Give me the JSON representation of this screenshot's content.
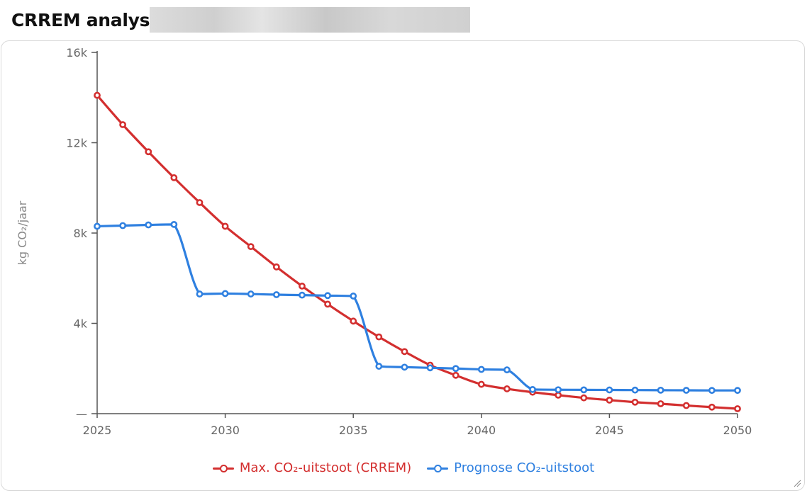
{
  "header": {
    "title": "CRREM analys"
  },
  "chart_data": {
    "type": "line",
    "ylabel": "kg CO₂/jaar",
    "xlabel": "",
    "xlim": [
      2025,
      2050
    ],
    "ylim": [
      0,
      16000
    ],
    "x_ticks": [
      2025,
      2030,
      2035,
      2040,
      2045,
      2050
    ],
    "x_tick_labels": [
      "2025",
      "2030",
      "2035",
      "2040",
      "2045",
      "2050"
    ],
    "y_ticks": [
      0,
      4000,
      8000,
      12000,
      16000
    ],
    "y_tick_labels": [
      "—",
      "4k",
      "8k",
      "12k",
      "16k"
    ],
    "legend_position": "bottom-center",
    "grid": false,
    "x": [
      2025,
      2026,
      2027,
      2028,
      2029,
      2030,
      2031,
      2032,
      2033,
      2034,
      2035,
      2036,
      2037,
      2038,
      2039,
      2040,
      2041,
      2042,
      2043,
      2044,
      2045,
      2046,
      2047,
      2048,
      2049,
      2050
    ],
    "series": [
      {
        "name": "Max. CO₂-uitstoot (CRREM)",
        "color": "#d32f2f",
        "values": [
          14100,
          12800,
          11600,
          10450,
          9350,
          8300,
          7400,
          6500,
          5650,
          4850,
          4100,
          3400,
          2750,
          2150,
          1700,
          1300,
          1100,
          950,
          820,
          700,
          600,
          510,
          440,
          360,
          290,
          220
        ]
      },
      {
        "name": "Prognose CO₂-uitstoot",
        "color": "#2f80e0",
        "values": [
          8300,
          8330,
          8360,
          8380,
          5300,
          5320,
          5300,
          5270,
          5250,
          5230,
          5210,
          2100,
          2060,
          2030,
          2000,
          1960,
          1940,
          1070,
          1060,
          1055,
          1050,
          1045,
          1040,
          1035,
          1030,
          1030
        ]
      }
    ]
  }
}
